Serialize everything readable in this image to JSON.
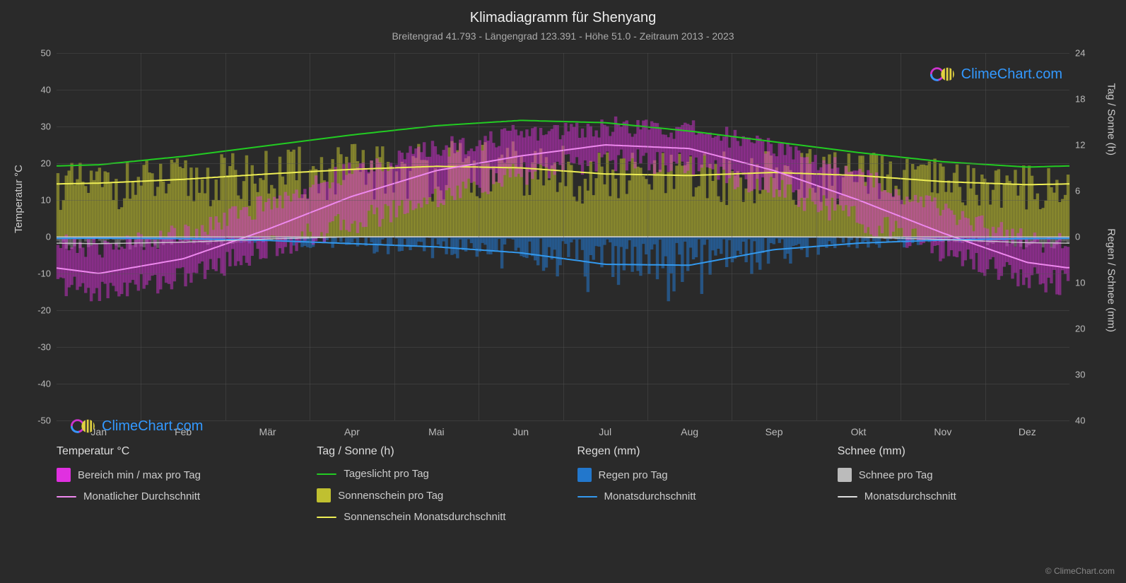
{
  "title": "Klimadiagramm für Shenyang",
  "subtitle": "Breitengrad 41.793 - Längengrad 123.391 - Höhe 51.0 - Zeitraum 2013 - 2023",
  "brand": "ClimeChart.com",
  "copyright": "© ClimeChart.com",
  "axes": {
    "y_left_label": "Temperatur °C",
    "y_right_top_label": "Tag / Sonne (h)",
    "y_right_bot_label": "Regen / Schnee (mm)",
    "y_left_ticks": [
      50,
      40,
      30,
      20,
      10,
      0,
      -10,
      -20,
      -30,
      -40,
      -50
    ],
    "y_left_min": -50,
    "y_left_max": 50,
    "y_right_top_ticks": [
      24,
      18,
      12,
      6,
      0
    ],
    "y_right_top_min": 0,
    "y_right_top_max": 48,
    "y_right_bot_ticks": [
      0,
      10,
      20,
      30,
      40
    ],
    "y_right_bot_min": 0,
    "y_right_bot_max": 80,
    "x_ticks": [
      "Jan",
      "Feb",
      "Mär",
      "Apr",
      "Mai",
      "Jun",
      "Jul",
      "Aug",
      "Sep",
      "Okt",
      "Nov",
      "Dez"
    ]
  },
  "background_color": "#2a2a2a",
  "grid_color": "#555555",
  "zero_color": "#cccccc",
  "brand_color": "#3399ff",
  "series": {
    "temp_range_color": "#e030e0",
    "temp_avg_color": "#ee88ee",
    "daylight_color": "#22cc22",
    "sunshine_bar_color": "#c0c030",
    "sunshine_avg_color": "#eeee55",
    "rain_bar_color": "#2277cc",
    "rain_avg_color": "#3399ee",
    "snow_bar_color": "#bbbbbb",
    "snow_avg_color": "#dddddd"
  },
  "monthly": {
    "temp_min": [
      -15,
      -11,
      -3,
      4,
      11,
      17,
      21,
      20,
      13,
      5,
      -4,
      -11
    ],
    "temp_max": [
      -3,
      1,
      9,
      18,
      24,
      28,
      30,
      29,
      25,
      17,
      7,
      -1
    ],
    "temp_avg": [
      -10,
      -6,
      2,
      11,
      18,
      22,
      25,
      24,
      18,
      10,
      1,
      -7
    ],
    "daylight_h": [
      9.4,
      10.5,
      11.9,
      13.3,
      14.5,
      15.2,
      14.9,
      13.8,
      12.4,
      11.0,
      9.8,
      9.1
    ],
    "sunshine_h": [
      7.0,
      7.5,
      8.2,
      8.8,
      9.2,
      9.0,
      8.2,
      8.0,
      8.4,
      8.0,
      7.2,
      6.8
    ],
    "rain_mm_day": [
      0.2,
      0.3,
      0.7,
      1.3,
      2.0,
      3.1,
      5.8,
      6.0,
      2.6,
      1.3,
      0.6,
      0.3
    ],
    "rain_avg": [
      0.3,
      0.4,
      0.8,
      1.5,
      2.2,
      3.5,
      6.0,
      6.2,
      2.8,
      1.4,
      0.7,
      0.4
    ],
    "snow_mm_day": [
      1.5,
      1.2,
      0.5,
      0.0,
      0.0,
      0.0,
      0.0,
      0.0,
      0.0,
      0.1,
      0.6,
      1.3
    ],
    "snow_avg": [
      1.5,
      1.2,
      0.5,
      0.0,
      0.0,
      0.0,
      0.0,
      0.0,
      0.0,
      0.1,
      0.6,
      1.3
    ]
  },
  "daily_days": 365,
  "legend": {
    "col1_title": "Temperatur °C",
    "col1_i1": "Bereich min / max pro Tag",
    "col1_i2": "Monatlicher Durchschnitt",
    "col2_title": "Tag / Sonne (h)",
    "col2_i1": "Tageslicht pro Tag",
    "col2_i2": "Sonnenschein pro Tag",
    "col2_i3": "Sonnenschein Monatsdurchschnitt",
    "col3_title": "Regen (mm)",
    "col3_i1": "Regen pro Tag",
    "col3_i2": "Monatsdurchschnitt",
    "col4_title": "Schnee (mm)",
    "col4_i1": "Schnee pro Tag",
    "col4_i2": "Monatsdurchschnitt"
  }
}
